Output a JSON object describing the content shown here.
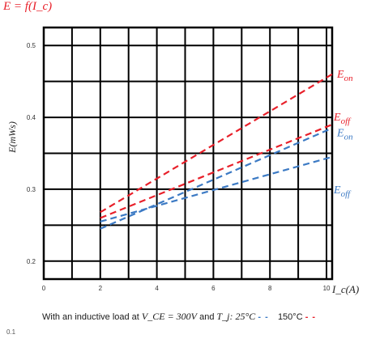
{
  "title": "E = f(I_c)",
  "caption": {
    "prefix": "With an inductive load at",
    "vce_label": "V_CE = 300V",
    "middle": "and",
    "tj_label": "T_j: 25°C",
    "temp2": "150°C"
  },
  "stray_label": "0.1",
  "colors": {
    "red": "#e8202a",
    "blue": "#3c7ac4",
    "grid": "#000000"
  },
  "chart_data": {
    "type": "line",
    "ylabel": "E(mWs)",
    "xlabel": "I_c(A)",
    "xlim": [
      0,
      10.2
    ],
    "ylim": [
      0.175,
      0.525
    ],
    "xticks": [
      0,
      2,
      4,
      6,
      8,
      10
    ],
    "yticks": [
      0.2,
      0.3,
      0.4,
      0.5
    ],
    "grid": true,
    "series": [
      {
        "name": "E_on",
        "temperature": "150°C",
        "color": "#e8202a",
        "x": [
          2,
          10.2
        ],
        "y": [
          0.268,
          0.46
        ]
      },
      {
        "name": "E_off",
        "temperature": "150°C",
        "color": "#e8202a",
        "x": [
          2,
          10.2
        ],
        "y": [
          0.26,
          0.39
        ]
      },
      {
        "name": "E_on",
        "temperature": "25°C",
        "color": "#3c7ac4",
        "x": [
          2,
          10.2
        ],
        "y": [
          0.245,
          0.385
        ]
      },
      {
        "name": "E_off",
        "temperature": "25°C",
        "color": "#3c7ac4",
        "x": [
          2,
          10.2
        ],
        "y": [
          0.255,
          0.345
        ]
      }
    ]
  }
}
